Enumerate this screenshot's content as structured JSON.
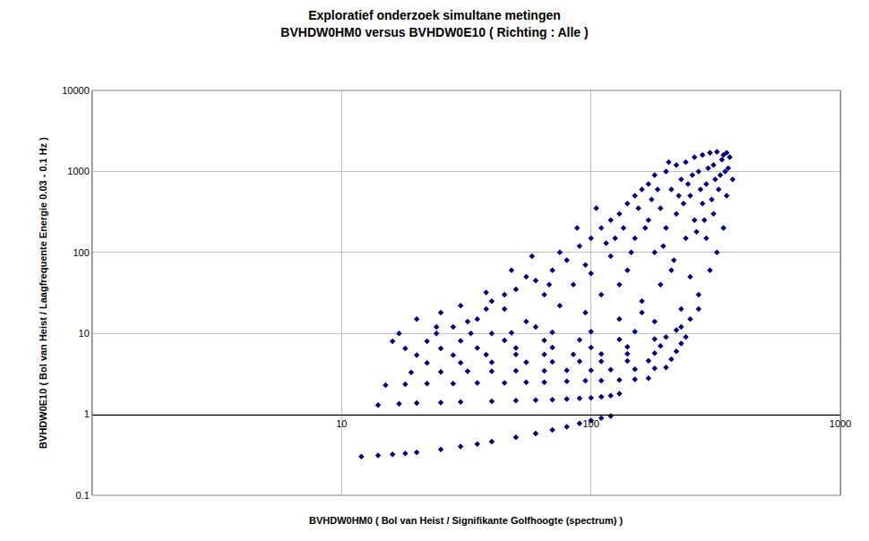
{
  "chart_data": {
    "type": "scatter",
    "title": "Exploratief onderzoek simultane metingen",
    "subtitle": "BVHDW0HM0 versus BVHDW0E10 ( Richting : Alle )",
    "x_label": "BVHDW0HM0 ( Bol van Heist / Signifikante Golfhoogte (spectrum) )",
    "y_label": "BVHDW0E10 ( Bol van Heist / Laagfrequente Energie 0.03 - 0.1 Hz )",
    "log": true,
    "grid": true,
    "color": "#000080",
    "marker": "diamond",
    "xlim": [
      1,
      1000
    ],
    "xticks": [
      10,
      100,
      1000
    ],
    "ylim": [
      0.1,
      10000
    ],
    "yticks": [
      0.1,
      1,
      10,
      100,
      1000,
      10000
    ],
    "x": [
      12,
      14,
      16,
      18,
      20,
      25,
      30,
      35,
      40,
      50,
      60,
      70,
      80,
      90,
      100,
      110,
      120,
      14,
      17,
      20,
      25,
      30,
      40,
      50,
      60,
      70,
      80,
      90,
      100,
      110,
      120,
      130,
      15,
      18,
      22,
      28,
      35,
      45,
      55,
      65,
      80,
      95,
      110,
      130,
      150,
      170,
      19,
      25,
      32,
      40,
      50,
      65,
      80,
      100,
      120,
      150,
      180,
      200,
      22,
      30,
      40,
      55,
      70,
      90,
      110,
      140,
      170,
      210,
      20,
      28,
      38,
      50,
      65,
      85,
      110,
      140,
      180,
      220,
      18,
      25,
      35,
      50,
      70,
      100,
      140,
      190,
      230,
      16,
      22,
      30,
      45,
      65,
      90,
      130,
      180,
      240,
      17,
      24,
      33,
      48,
      70,
      100,
      150,
      220,
      20,
      25,
      28,
      35,
      40,
      45,
      50,
      55,
      60,
      65,
      70,
      75,
      80,
      85,
      90,
      95,
      100,
      100,
      110,
      110,
      120,
      120,
      130,
      130,
      140,
      140,
      150,
      150,
      160,
      160,
      170,
      170,
      180,
      180,
      190,
      190,
      200,
      200,
      210,
      210,
      220,
      220,
      230,
      230,
      240,
      240,
      250,
      250,
      260,
      260,
      270,
      270,
      280,
      280,
      290,
      290,
      300,
      300,
      310,
      310,
      320,
      320,
      330,
      340,
      340,
      350,
      350,
      370,
      230,
      200,
      180,
      160,
      250,
      270,
      130,
      60,
      40,
      32,
      24,
      45,
      55,
      75,
      95,
      115,
      135,
      155,
      175,
      195,
      215,
      235,
      255,
      275,
      295,
      315,
      335,
      355,
      30,
      38,
      48,
      58,
      68,
      88,
      105,
      125,
      145,
      165,
      185,
      205,
      225,
      245,
      265,
      285,
      305,
      325,
      345,
      360,
      38
    ],
    "values": [
      0.3,
      0.31,
      0.32,
      0.33,
      0.34,
      0.37,
      0.4,
      0.43,
      0.46,
      0.52,
      0.58,
      0.64,
      0.7,
      0.77,
      0.84,
      0.9,
      0.95,
      1.3,
      1.35,
      1.38,
      1.4,
      1.42,
      1.45,
      1.48,
      1.5,
      1.52,
      1.55,
      1.58,
      1.6,
      1.65,
      1.7,
      1.8,
      2.3,
      2.35,
      2.4,
      2.4,
      2.45,
      2.45,
      2.5,
      2.5,
      2.55,
      2.6,
      2.6,
      2.65,
      2.7,
      2.8,
      3.3,
      3.35,
      3.4,
      3.4,
      3.45,
      3.45,
      3.5,
      3.5,
      3.55,
      3.6,
      3.7,
      3.8,
      4.3,
      4.35,
      4.4,
      4.4,
      4.45,
      4.5,
      4.5,
      4.55,
      4.6,
      4.8,
      5.4,
      5.4,
      5.45,
      5.5,
      5.5,
      5.5,
      5.55,
      5.6,
      5.7,
      6,
      6.5,
      6.5,
      6.6,
      6.6,
      6.7,
      6.7,
      6.8,
      7,
      7.5,
      8,
      8,
      8.1,
      8.2,
      8.2,
      8.3,
      8.4,
      8.5,
      9,
      10,
      10,
      10,
      10.2,
      10.3,
      10.5,
      10.5,
      11,
      15,
      18,
      12,
      15,
      25,
      20,
      35,
      14,
      45,
      30,
      60,
      22,
      80,
      40,
      120,
      18,
      150,
      55,
      200,
      30,
      250,
      90,
      300,
      15,
      400,
      60,
      500,
      150,
      600,
      25,
      250,
      700,
      100,
      900,
      40,
      350,
      1000,
      200,
      60,
      600,
      1200,
      300,
      20,
      800,
      150,
      1300,
      500,
      50,
      1500,
      250,
      1000,
      30,
      1600,
      400,
      150,
      700,
      1700,
      60,
      1200,
      300,
      1750,
      100,
      900,
      1600,
      200,
      1700,
      500,
      800,
      12,
      9,
      14,
      18,
      15,
      20,
      40,
      12,
      10,
      14,
      12,
      30,
      50,
      100,
      70,
      130,
      200,
      350,
      450,
      120,
      80,
      400,
      900,
      600,
      1100,
      800,
      1400,
      1100,
      22,
      32,
      60,
      90,
      40,
      200,
      350,
      150,
      100,
      200,
      600,
      1300,
      500,
      700,
      180,
      250,
      450,
      600,
      1000,
      1500,
      20
    ]
  }
}
